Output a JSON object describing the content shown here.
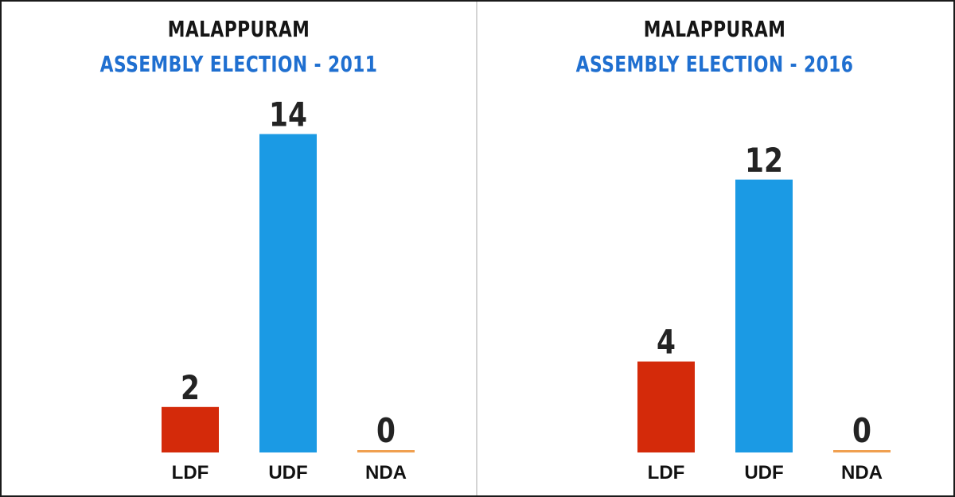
{
  "chart_data": [
    {
      "type": "bar",
      "title": "MALAPPURAM",
      "subtitle": "ASSEMBLY ELECTION - 2011",
      "categories": [
        "LDF",
        "UDF",
        "NDA"
      ],
      "values": [
        2,
        14,
        0
      ],
      "colors": [
        "#d42a0a",
        "#1b9ae4",
        "#f0a050"
      ],
      "ylim": [
        0,
        14
      ],
      "grid": false
    },
    {
      "type": "bar",
      "title": "MALAPPURAM",
      "subtitle": "ASSEMBLY ELECTION - 2016",
      "categories": [
        "LDF",
        "UDF",
        "NDA"
      ],
      "values": [
        4,
        12,
        0
      ],
      "colors": [
        "#d42a0a",
        "#1b9ae4",
        "#f0a050"
      ],
      "ylim": [
        0,
        14
      ],
      "grid": false
    }
  ]
}
